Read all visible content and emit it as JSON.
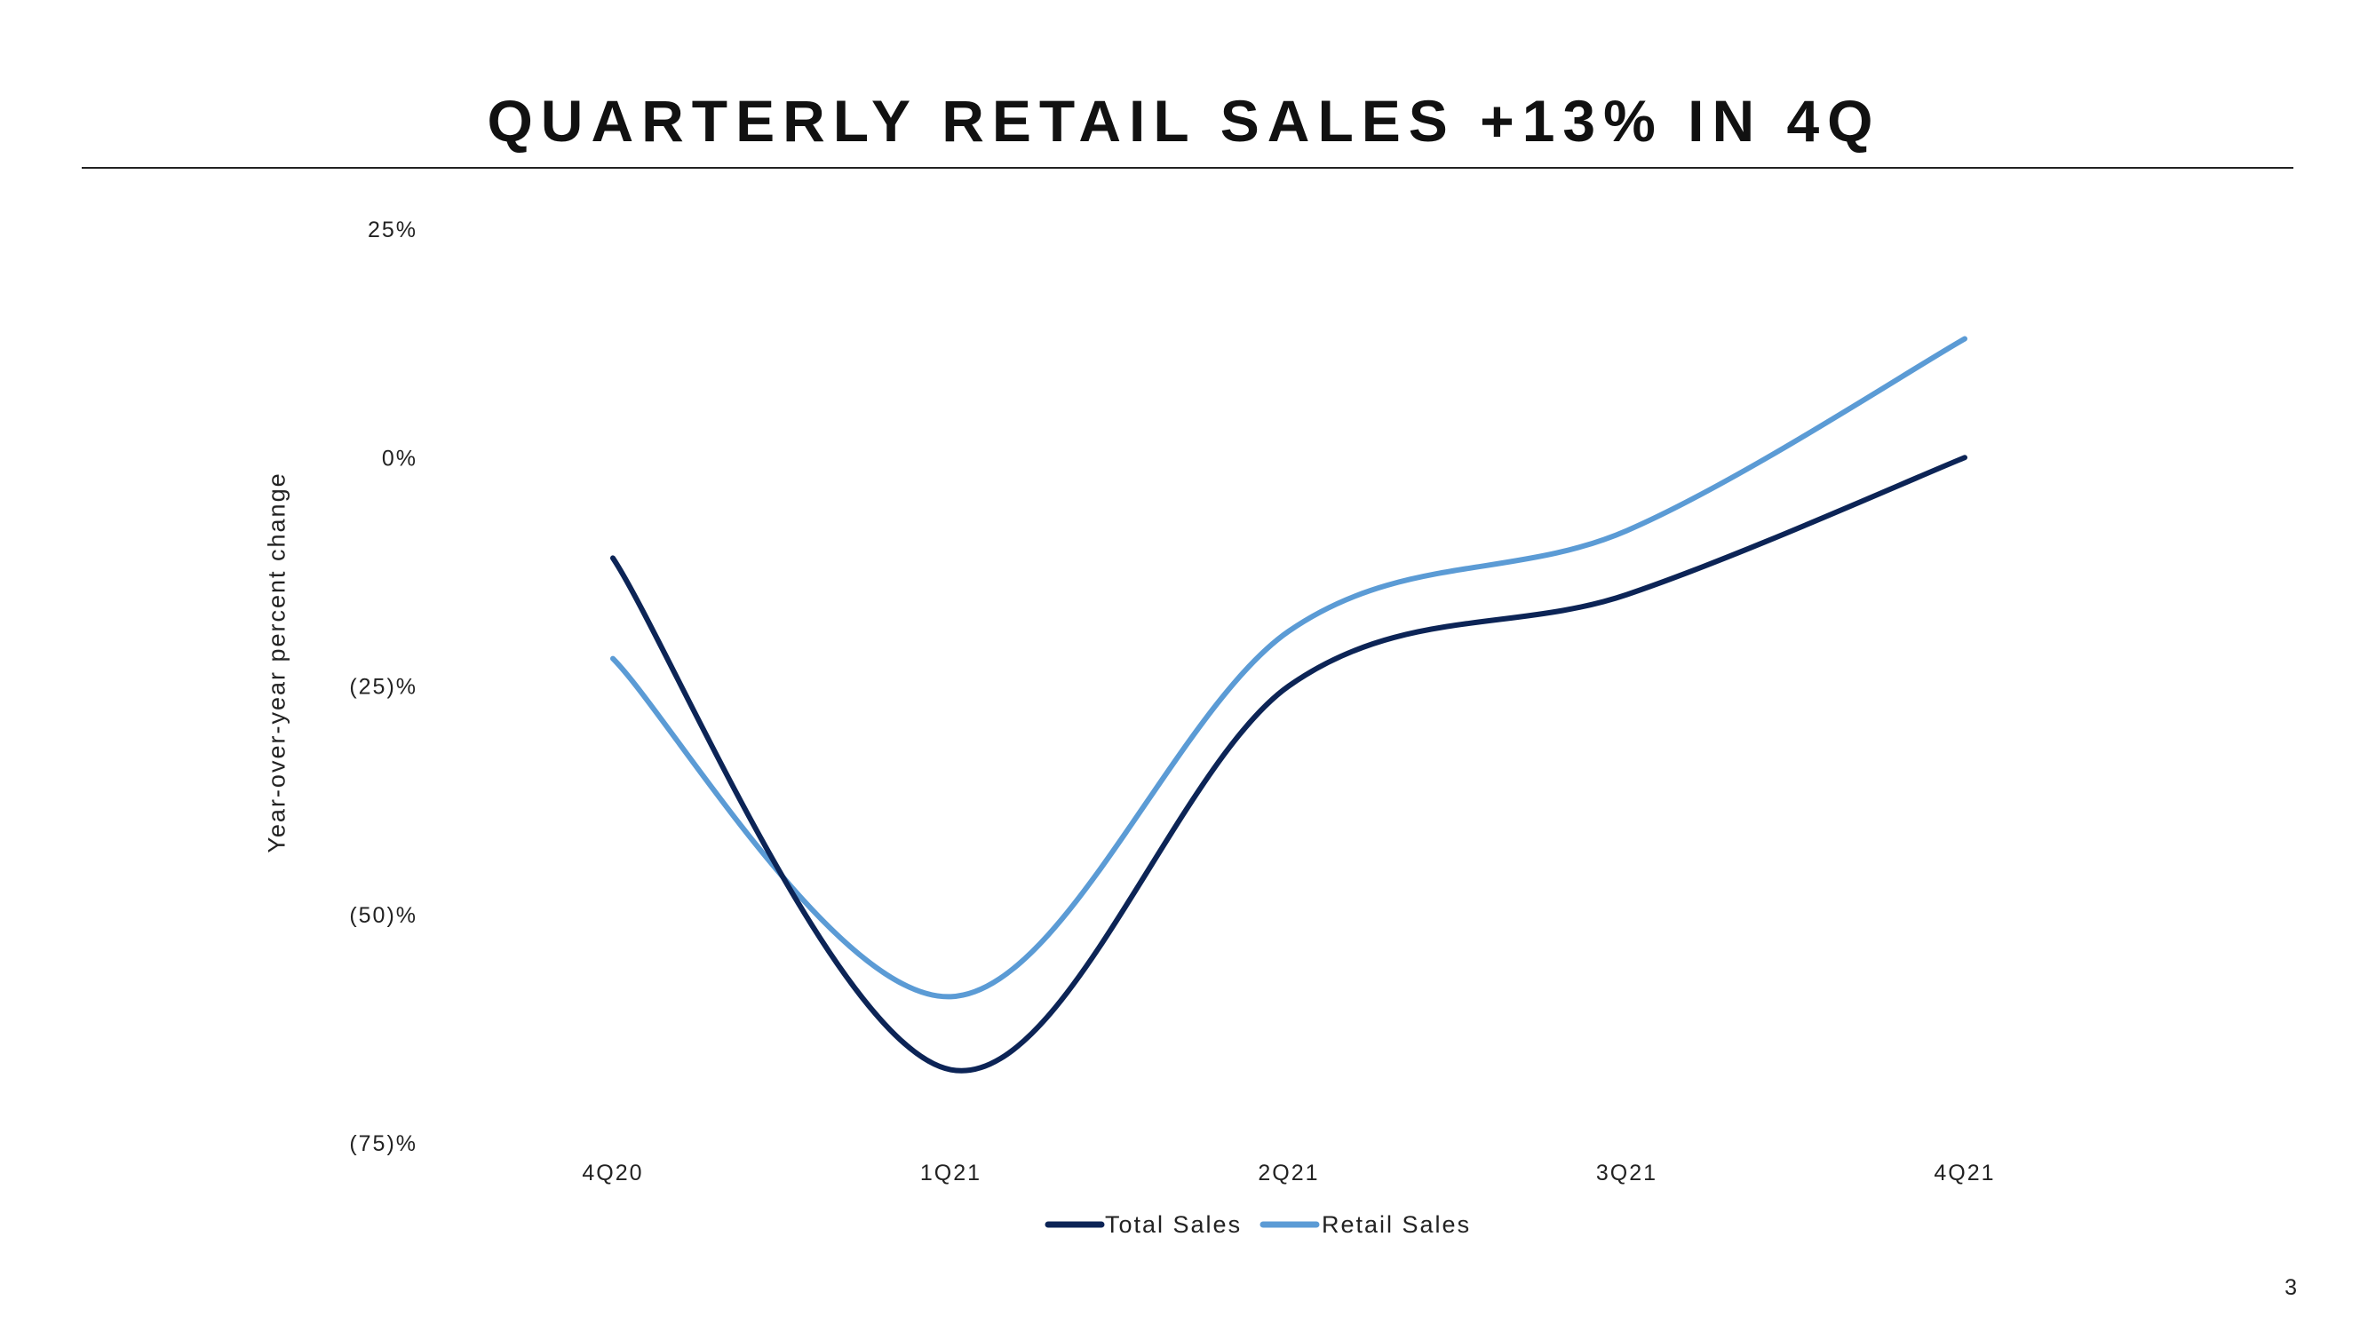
{
  "slide": {
    "title": "QUARTERLY RETAIL SALES +13% IN 4Q",
    "page_number": "3"
  },
  "chart_data": {
    "type": "line",
    "ylabel": "Year-over-year percent change",
    "x": [
      "4Q20",
      "1Q21",
      "2Q21",
      "3Q21",
      "4Q21"
    ],
    "y_ticks": [
      {
        "value": 25,
        "label": "25%"
      },
      {
        "value": 0,
        "label": "0%"
      },
      {
        "value": -25,
        "label": "(25)%"
      },
      {
        "value": -50,
        "label": "(50)%"
      },
      {
        "value": -75,
        "label": "(75)%"
      }
    ],
    "ylim": [
      -75,
      25
    ],
    "grid": false,
    "legend": "bottom-center",
    "series": [
      {
        "name": "Total Sales",
        "color": "#0c2456",
        "values": [
          -11,
          -67,
          -25,
          -15,
          0
        ]
      },
      {
        "name": "Retail Sales",
        "color": "#5b9bd5",
        "values": [
          -22,
          -59,
          -19,
          -8,
          13
        ]
      }
    ]
  }
}
